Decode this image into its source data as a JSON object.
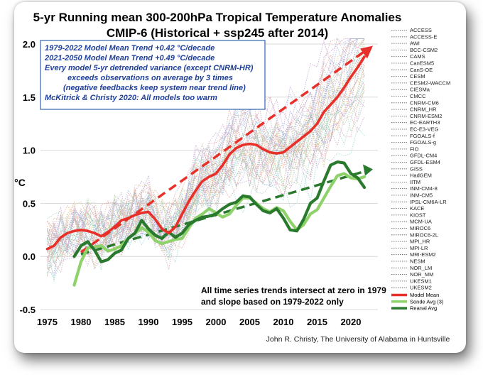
{
  "colors": {
    "model_mean": "#e8302a",
    "sonde": "#8fd16a",
    "reanal": "#2a7a2e",
    "annotation": "#1f3f99",
    "grid": "#d8d8d8",
    "model_palette": [
      "#9aa3d6",
      "#e0a3a3",
      "#a3d6a3",
      "#d6c79a",
      "#c8a3d6",
      "#9ad6d0",
      "#d6a3c4",
      "#b0b0b0",
      "#f0b080",
      "#a0c0e0"
    ]
  },
  "annotations": {
    "line1": "1979-2022 Model Mean Trend +0.42 °C/decade",
    "line2": "2021-2050 Model Mean Trend +0.49 °C/decade",
    "line3": "Every model 5-yr detrended variance (except CNRM-HR)",
    "line4": "exceeds observations on average by 3 times",
    "line5": "(negative feedbacks keep system near trend line)",
    "line6": "McKitrick & Christy 2020: All models too warm"
  },
  "note": {
    "line1": "All time series trends intersect at zero in 1979",
    "line2": "and slope based on 1979-2022 only"
  },
  "credit": "John R. Christy, The University of Alabama in Huntsville",
  "chart_data": {
    "type": "line",
    "title": "5-yr Running mean 300-200hPa Tropical Temperature Anomalies",
    "subtitle": "CMIP-6 (Historical + ssp245 after 2014)",
    "xlabel": "",
    "ylabel": "°C",
    "xlim": [
      1974,
      2024
    ],
    "ylim": [
      -0.5,
      2.0
    ],
    "xticks": [
      1975,
      1980,
      1985,
      1990,
      1995,
      2000,
      2005,
      2010,
      2015,
      2020
    ],
    "yticks": [
      -0.5,
      0.0,
      0.5,
      1.0,
      1.5,
      2.0
    ],
    "ytick_labels": [
      "-0.5",
      "0.0",
      "0.5",
      "1.0",
      "1.5",
      "2.0"
    ],
    "grid": true,
    "legend_position": "right",
    "model_names": [
      "ACCESS",
      "ACCESS-E",
      "AWI",
      "BCC-CSM2",
      "CAMS",
      "CanESM5",
      "CanS-OE",
      "CESM",
      "CESM2-WACCM",
      "CIESMa",
      "CMCC",
      "CNRM-CM6",
      "CNRM_HR",
      "CNRM-ESM2",
      "EC-EARTH3",
      "EC-E3-VEG",
      "FGOALS-f",
      "FGOALS-g",
      "FIO",
      "GFDL-CM4",
      "GFDL-ESM4",
      "GISS",
      "HadGEM",
      "IITM",
      "INM-CM4-8",
      "INM-CM5",
      "IPSL-CM6A-LR",
      "KACE",
      "KIOST",
      "MCM-UA",
      "MIROC6",
      "MIROC6-2L",
      "MPI_HR",
      "MPI-LR",
      "MRI-ESM2",
      "NESM",
      "NOR_LM",
      "NOR_MM",
      "UKESM1",
      "UKESM2"
    ],
    "series": [
      {
        "name": "Model Mean",
        "x": [
          1975,
          1976,
          1977,
          1978,
          1979,
          1980,
          1981,
          1982,
          1983,
          1984,
          1985,
          1986,
          1987,
          1988,
          1989,
          1990,
          1991,
          1992,
          1993,
          1994,
          1995,
          1996,
          1997,
          1998,
          1999,
          2000,
          2001,
          2002,
          2003,
          2004,
          2005,
          2006,
          2007,
          2008,
          2009,
          2010,
          2011,
          2012,
          2013,
          2014,
          2015,
          2016,
          2017,
          2018,
          2019,
          2020,
          2021,
          2022
        ],
        "values": [
          0.07,
          0.1,
          0.18,
          0.22,
          0.24,
          0.25,
          0.24,
          0.22,
          0.19,
          0.23,
          0.28,
          0.34,
          0.36,
          0.39,
          0.41,
          0.42,
          0.35,
          0.26,
          0.22,
          0.28,
          0.4,
          0.52,
          0.62,
          0.71,
          0.75,
          0.78,
          0.86,
          0.96,
          1.02,
          1.05,
          1.06,
          1.05,
          1.01,
          0.98,
          0.97,
          0.98,
          1.03,
          1.08,
          1.13,
          1.18,
          1.25,
          1.36,
          1.43,
          1.5,
          1.59,
          1.69,
          1.78,
          1.88
        ]
      },
      {
        "name": "Sonde Avg (3)",
        "x": [
          1979,
          1980,
          1981,
          1982,
          1983,
          1984,
          1985,
          1986,
          1987,
          1988,
          1989,
          1990,
          1991,
          1992,
          1993,
          1994,
          1995,
          1996,
          1997,
          1998,
          1999,
          2000,
          2001,
          2002,
          2003,
          2004,
          2005,
          2006,
          2007,
          2008,
          2009,
          2010,
          2011,
          2012,
          2013,
          2014,
          2015,
          2016,
          2017,
          2018,
          2019,
          2020,
          2021,
          2022
        ],
        "values": [
          -0.27,
          -0.05,
          0.08,
          0.09,
          0.1,
          0.05,
          0.07,
          0.1,
          0.17,
          0.22,
          0.27,
          0.23,
          0.15,
          0.12,
          0.14,
          0.16,
          0.17,
          0.27,
          0.36,
          0.4,
          0.45,
          0.41,
          0.37,
          0.4,
          0.48,
          0.55,
          0.55,
          0.5,
          0.45,
          0.42,
          0.46,
          0.43,
          0.33,
          0.25,
          0.3,
          0.4,
          0.44,
          0.55,
          0.66,
          0.76,
          0.78,
          0.74,
          0.73,
          0.75
        ]
      },
      {
        "name": "Reanal Avg",
        "x": [
          1979,
          1980,
          1981,
          1982,
          1983,
          1984,
          1985,
          1986,
          1987,
          1988,
          1989,
          1990,
          1991,
          1992,
          1993,
          1994,
          1995,
          1996,
          1997,
          1998,
          1999,
          2000,
          2001,
          2002,
          2003,
          2004,
          2005,
          2006,
          2007,
          2008,
          2009,
          2010,
          2011,
          2012,
          2013,
          2014,
          2015,
          2016,
          2017,
          2018,
          2019,
          2020,
          2021,
          2022
        ],
        "values": [
          0.0,
          0.1,
          0.14,
          0.06,
          -0.05,
          -0.03,
          0.03,
          0.06,
          0.17,
          0.22,
          0.34,
          0.26,
          0.2,
          0.17,
          0.23,
          0.18,
          0.22,
          0.3,
          0.34,
          0.37,
          0.38,
          0.4,
          0.45,
          0.49,
          0.51,
          0.57,
          0.56,
          0.49,
          0.43,
          0.41,
          0.45,
          0.36,
          0.25,
          0.24,
          0.35,
          0.5,
          0.55,
          0.71,
          0.86,
          0.89,
          0.88,
          0.78,
          0.74,
          0.65
        ]
      }
    ],
    "trend_lines": [
      {
        "name": "Model Mean trend",
        "x": [
          1980,
          2022
        ],
        "values": [
          0.04,
          1.93
        ]
      },
      {
        "name": "Observed trend",
        "x": [
          1980,
          2022
        ],
        "values": [
          0.02,
          0.8
        ]
      }
    ]
  }
}
